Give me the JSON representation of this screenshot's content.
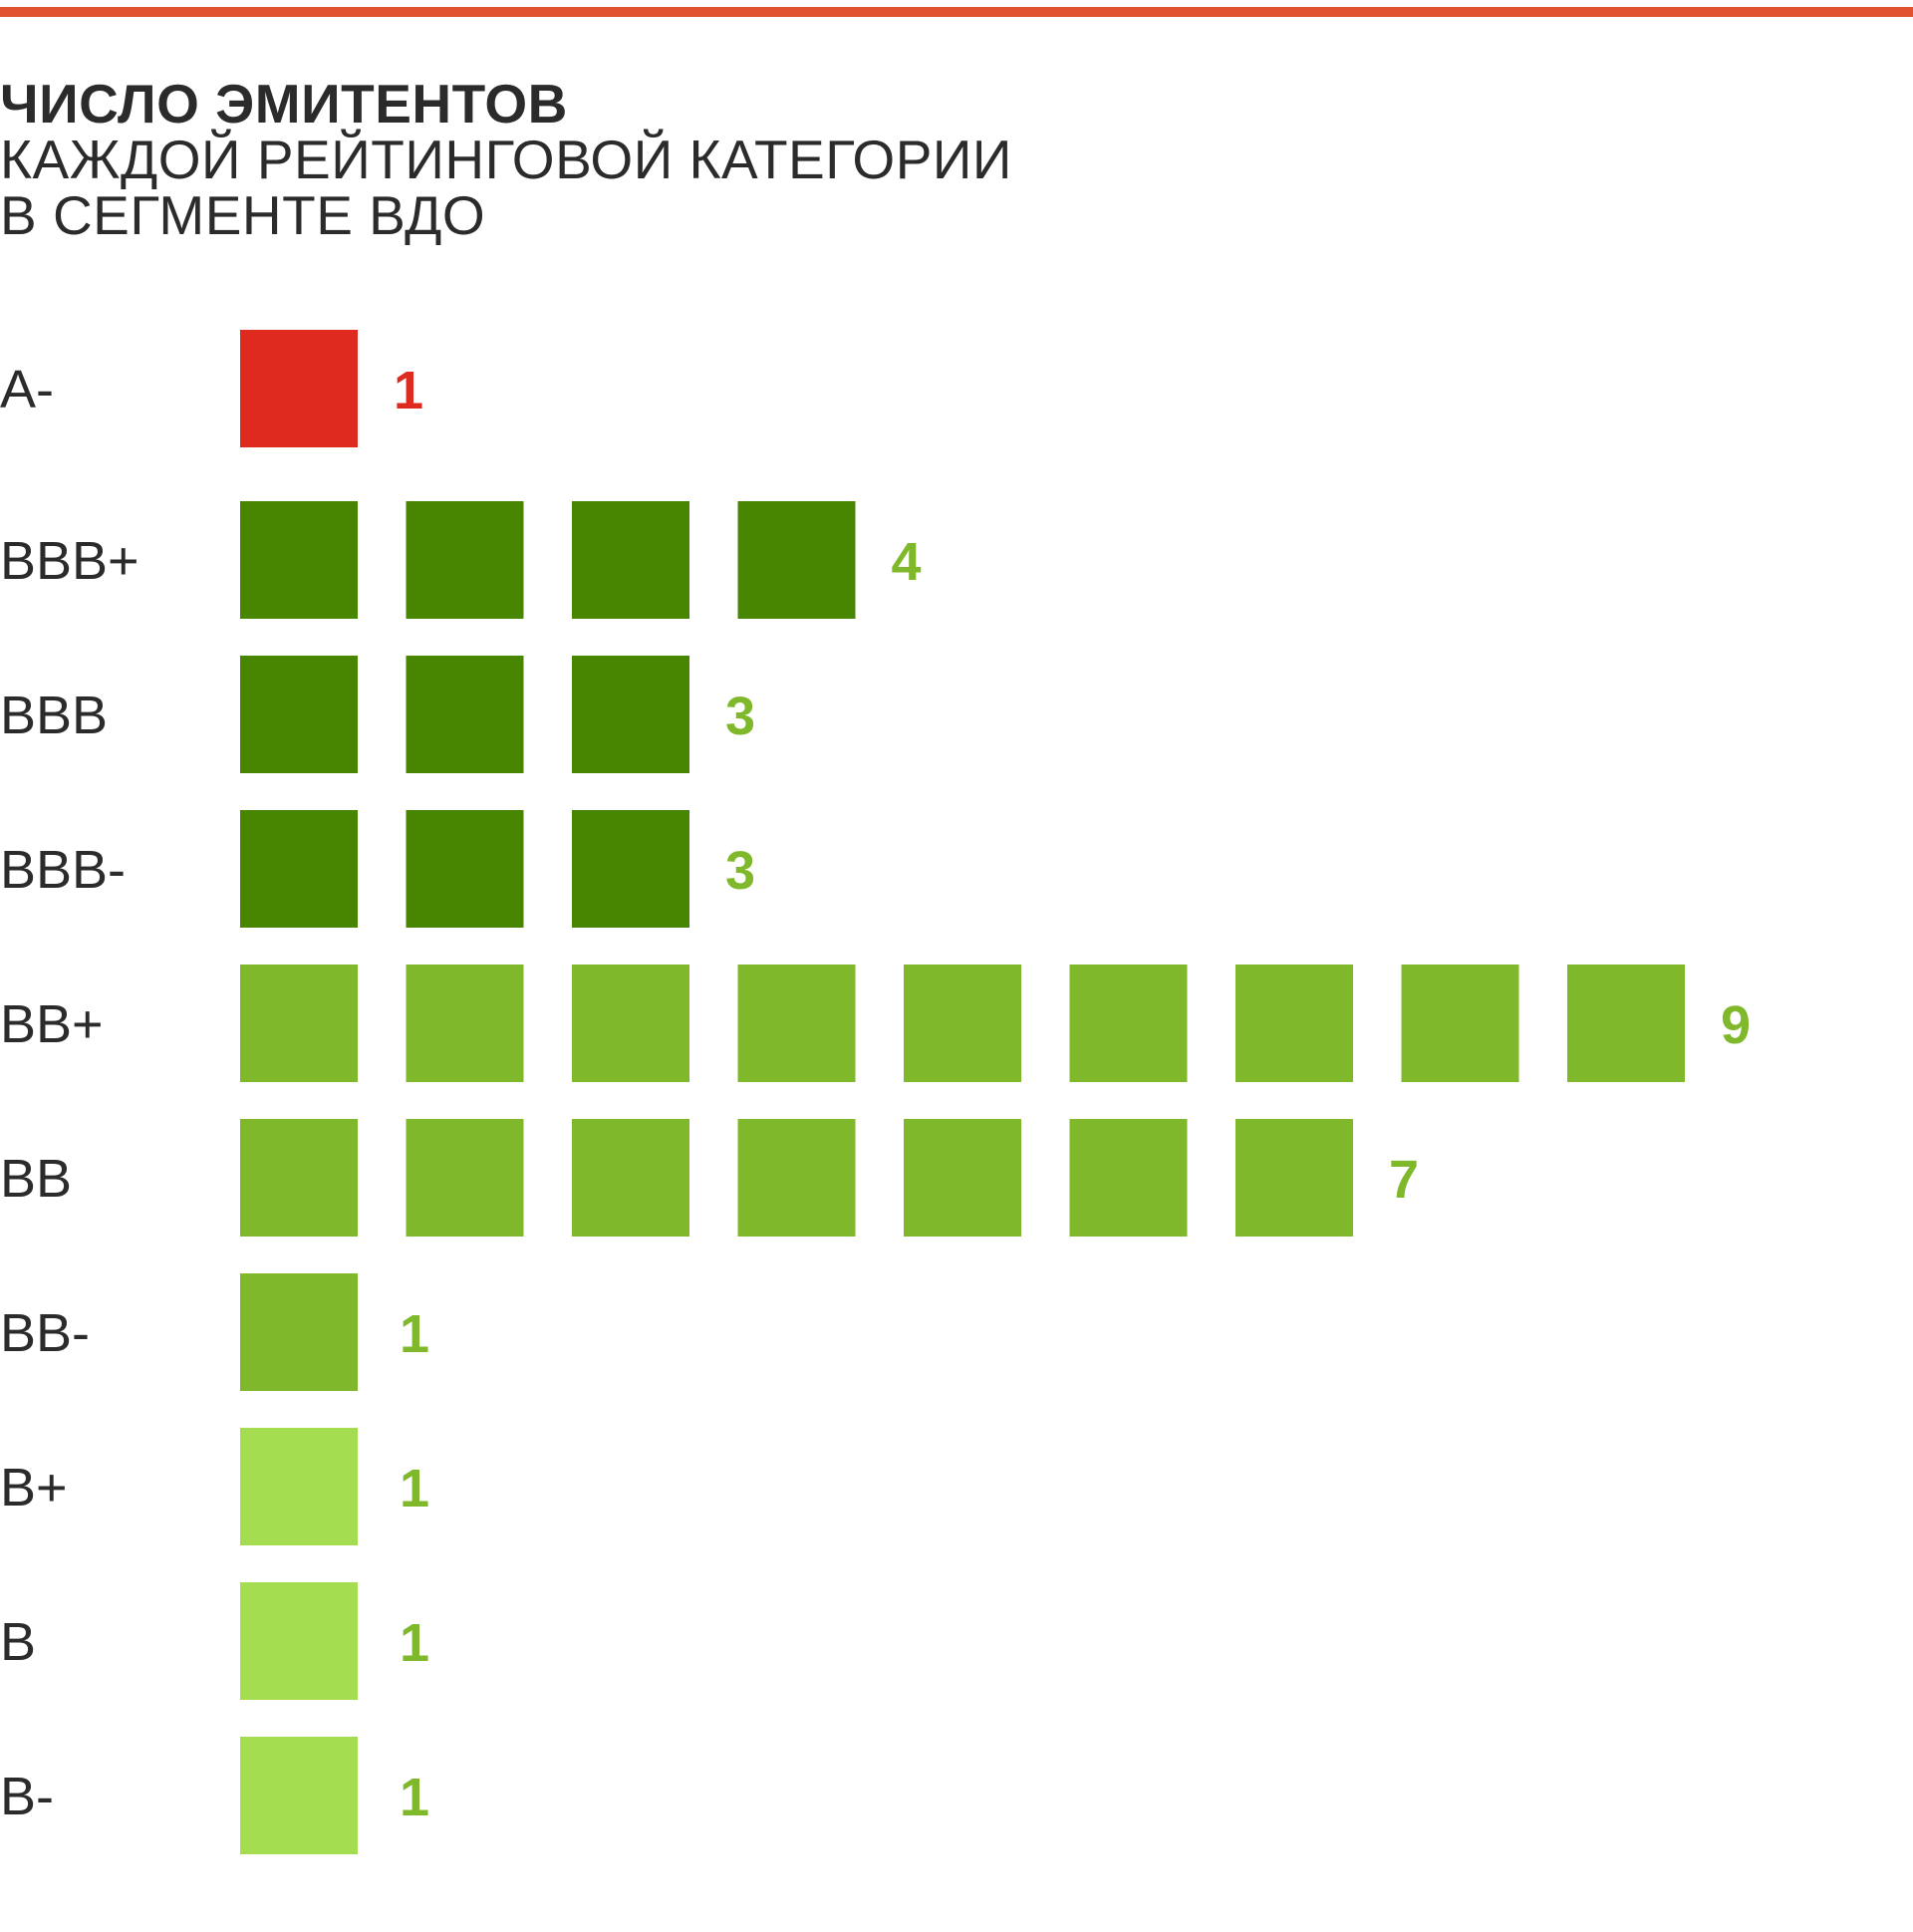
{
  "header": {
    "title_bold": "ЧИСЛО ЭМИТЕНТОВ",
    "title_line2": "КАЖДОЙ РЕЙТИНГОВОЙ КАТЕГОРИИ",
    "title_line3": "В СЕГМЕНТЕ ВДО"
  },
  "colors": {
    "accent_rule": "#e2512f",
    "tier_a": "#df2b1f",
    "tier_bbb": "#488500",
    "tier_bb": "#7fb82a",
    "tier_b": "#a4de50",
    "count_a": "#df2b1f",
    "count_other": "#7fb82a"
  },
  "chart_data": {
    "type": "bar",
    "title": "ЧИСЛО ЭМИТЕНТОВ КАЖДОЙ РЕЙТИНГОВОЙ КАТЕГОРИИ В СЕГМЕНТЕ ВДО",
    "categories": [
      "A-",
      "BBB+",
      "BBB",
      "BBB-",
      "BB+",
      "BB",
      "BB-",
      "B+",
      "B",
      "B-"
    ],
    "values": [
      1,
      4,
      3,
      3,
      9,
      7,
      1,
      1,
      1,
      1
    ],
    "tiers": [
      "a",
      "bbb",
      "bbb",
      "bbb",
      "bb",
      "bb",
      "bb",
      "b",
      "b",
      "b"
    ],
    "orientation": "horizontal",
    "xlabel": "",
    "ylabel": "",
    "grid": false,
    "legend": "none"
  }
}
